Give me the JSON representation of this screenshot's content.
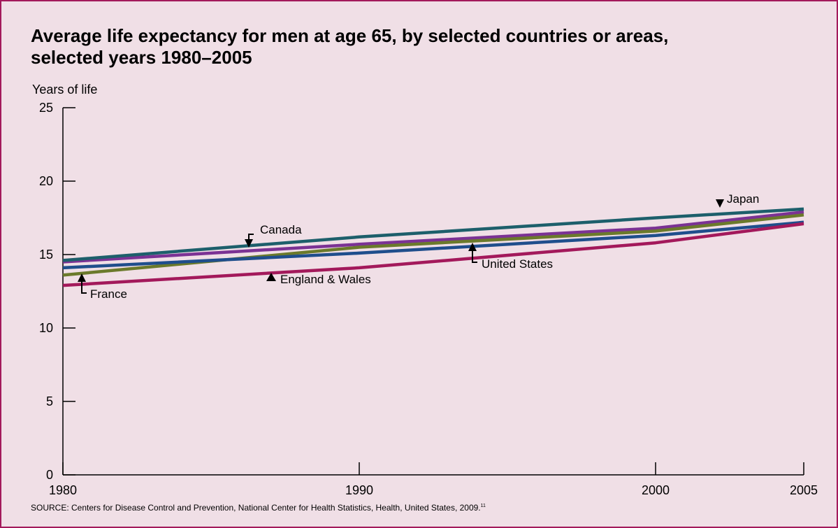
{
  "chart_data": {
    "type": "line",
    "title": "Average life expectancy for men at age 65, by selected countries or areas, selected years 1980–2005",
    "ylabel": "Years of life",
    "xlabel": "",
    "ylim": [
      0,
      25
    ],
    "xlim": [
      1980,
      2005
    ],
    "y_ticks": [
      "0",
      "5",
      "10",
      "15",
      "20",
      "25"
    ],
    "x_ticks": [
      "1980",
      "1990",
      "2000",
      "2005"
    ],
    "grid": false,
    "legend": "inline labels",
    "series": [
      {
        "name": "Japan",
        "color": "#1d5f6b",
        "x": [
          1980,
          1990,
          2000,
          2005
        ],
        "values": [
          14.6,
          16.2,
          17.5,
          18.1
        ]
      },
      {
        "name": "Canada",
        "color": "#7b3294",
        "x": [
          1980,
          1990,
          2000,
          2005
        ],
        "values": [
          14.5,
          15.7,
          16.8,
          17.9
        ]
      },
      {
        "name": "France",
        "color": "#6b7a2b",
        "x": [
          1980,
          1990,
          2000,
          2005
        ],
        "values": [
          13.6,
          15.5,
          16.6,
          17.7
        ]
      },
      {
        "name": "United States",
        "color": "#1f4e8c",
        "x": [
          1980,
          1990,
          2000,
          2005
        ],
        "values": [
          14.1,
          15.1,
          16.3,
          17.2
        ]
      },
      {
        "name": "England & Wales",
        "color": "#a3195b",
        "x": [
          1980,
          1990,
          2000,
          2005
        ],
        "values": [
          12.9,
          14.1,
          15.8,
          17.1
        ]
      }
    ],
    "annotations": [
      {
        "label": "Japan"
      },
      {
        "label": "Canada"
      },
      {
        "label": "United States"
      },
      {
        "label": "France"
      },
      {
        "label": "England & Wales"
      }
    ]
  },
  "source": {
    "text": "SOURCE: Centers for Disease Control and Prevention, National Center for Health Statistics, Health, United States, 2009.",
    "ref": "11"
  }
}
